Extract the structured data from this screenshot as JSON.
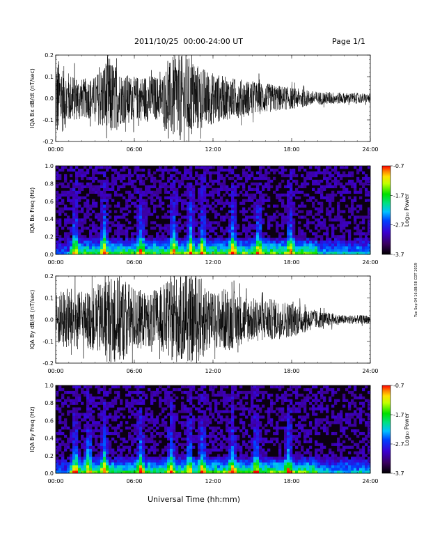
{
  "header": {
    "date_range": "2011/10/25  00:00-24:00 UT",
    "page": "Page 1/1"
  },
  "footer": {
    "xlabel": "Universal Time (hh:mm)"
  },
  "stamp": "Tue Sep 04 16:08:58 CDT 2019",
  "colorbar": {
    "label": "Log₁₀ Power",
    "ticks": [
      "-0.7",
      "-1.7",
      "-2.7",
      "-3.7"
    ],
    "range": [
      -3.7,
      -0.7
    ]
  },
  "chart_data": [
    {
      "type": "line",
      "ylabel": "IQA Bx dB/dt (nT/sec)",
      "xlim": [
        0,
        24
      ],
      "ylim": [
        -0.2,
        0.2
      ],
      "xticks": [
        "00:00",
        "06:00",
        "12:00",
        "18:00",
        "24:00"
      ],
      "yticks": [
        "-0.2",
        "-0.1",
        "0.0",
        "0.1",
        "0.2"
      ],
      "series": [
        {
          "x": [
            0,
            1,
            2,
            3,
            4,
            5,
            6,
            7,
            8,
            9,
            10,
            11,
            12,
            13,
            14,
            15,
            16,
            17,
            18,
            19,
            20,
            21,
            22,
            23,
            24
          ],
          "envelope": [
            0.2,
            0.12,
            0.09,
            0.1,
            0.2,
            0.12,
            0.1,
            0.11,
            0.1,
            0.2,
            0.2,
            0.15,
            0.12,
            0.1,
            0.09,
            0.08,
            0.07,
            0.06,
            0.05,
            0.04,
            0.03,
            0.03,
            0.025,
            0.025,
            0.02
          ]
        }
      ]
    },
    {
      "type": "heatmap",
      "ylabel": "IQA Bx Freq (Hz)",
      "xlim": [
        0,
        24
      ],
      "ylim": [
        0,
        1
      ],
      "xticks": [
        "00:00",
        "06:00",
        "12:00",
        "18:00",
        "24:00"
      ],
      "yticks": [
        "0.0",
        "0.2",
        "0.4",
        "0.6",
        "0.8",
        "1.0"
      ],
      "bursts": [
        1.5,
        3.7,
        6.5,
        9.0,
        10.3,
        11.2,
        13.5,
        15.5,
        17.9
      ],
      "colorbar_label": "Log₁₀ Power"
    },
    {
      "type": "line",
      "ylabel": "IQA By dB/dt (nT/sec)",
      "xlim": [
        0,
        24
      ],
      "ylim": [
        -0.2,
        0.2
      ],
      "xticks": [
        "00:00",
        "06:00",
        "12:00",
        "18:00",
        "24:00"
      ],
      "yticks": [
        "-0.2",
        "-0.1",
        "0.0",
        "0.1",
        "0.2"
      ],
      "series": [
        {
          "x": [
            0,
            1,
            2,
            3,
            4,
            5,
            6,
            7,
            8,
            9,
            10,
            11,
            12,
            13,
            14,
            15,
            16,
            17,
            18,
            19,
            20,
            21,
            22,
            23,
            24
          ],
          "envelope": [
            0.12,
            0.15,
            0.12,
            0.15,
            0.2,
            0.2,
            0.15,
            0.12,
            0.15,
            0.2,
            0.2,
            0.2,
            0.12,
            0.15,
            0.12,
            0.1,
            0.1,
            0.09,
            0.08,
            0.06,
            0.04,
            0.03,
            0.02,
            0.02,
            0.02
          ]
        }
      ]
    },
    {
      "type": "heatmap",
      "ylabel": "IQA By Freq (Hz)",
      "xlim": [
        0,
        24
      ],
      "ylim": [
        0,
        1
      ],
      "xticks": [
        "00:00",
        "06:00",
        "12:00",
        "18:00",
        "24:00"
      ],
      "yticks": [
        "0.0",
        "0.2",
        "0.4",
        "0.6",
        "0.8",
        "1.0"
      ],
      "bursts": [
        1.5,
        2.5,
        3.7,
        6.5,
        8.8,
        10.2,
        11.2,
        13.5,
        15.3,
        17.8
      ],
      "colorbar_label": "Log₁₀ Power"
    }
  ]
}
